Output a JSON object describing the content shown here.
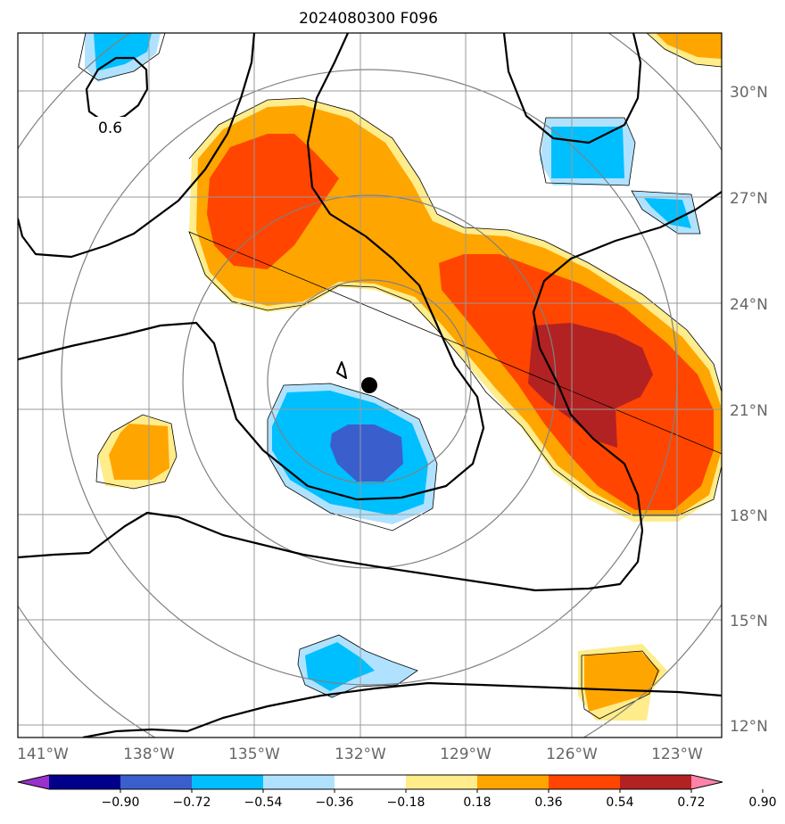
{
  "title": "2024080300 F096",
  "lat_labels": [
    "30°N",
    "27°N",
    "24°N",
    "21°N",
    "18°N",
    "15°N",
    "12°N"
  ],
  "lon_labels": [
    "141°W",
    "138°W",
    "135°W",
    "132°W",
    "129°W",
    "126°W",
    "123°W"
  ],
  "contour_label": "0.6",
  "colorbar": {
    "ticks": [
      "−0.90",
      "−0.72",
      "−0.54",
      "−0.36",
      "−0.18",
      "0.18",
      "0.36",
      "0.54",
      "0.72",
      "0.90"
    ],
    "colors": [
      "#9932CC",
      "#00008B",
      "#3A5FCD",
      "#00BFFF",
      "#B0E2FF",
      "#FFFFFF",
      "#FFEC8B",
      "#FFA500",
      "#FF4500",
      "#B22222",
      "#FF82AB"
    ]
  },
  "colors": {
    "neg_light": "#B0E2FF",
    "neg_mid": "#00BFFF",
    "neg_dark": "#3A5FCD",
    "pos_light": "#FFEC8B",
    "pos_mid": "#FFA500",
    "pos_strong": "#FF4500",
    "pos_max": "#B22222",
    "grid": "#999999",
    "range_ring": "#808080"
  }
}
